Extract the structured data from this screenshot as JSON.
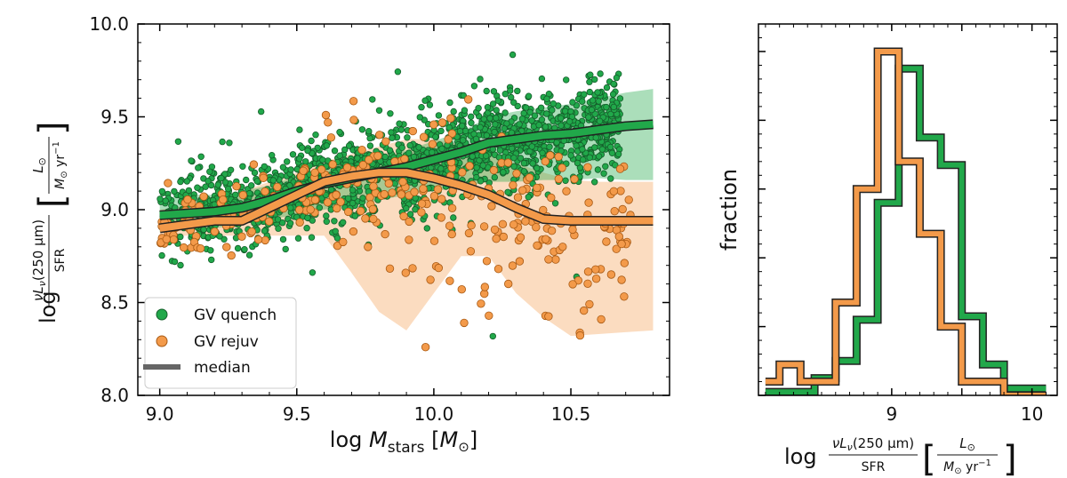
{
  "colors": {
    "quench": "#21a84a",
    "quench_edge": "#155e2b",
    "rejuv": "#f39a4a",
    "rejuv_edge": "#a85a14",
    "median_legend": "#666666"
  },
  "chart_data": [
    {
      "type": "scatter",
      "title": "",
      "xlabel_prefix": "log",
      "xlabel_math": "M",
      "xlabel_sub": "stars",
      "xlabel_unit": "M",
      "xlabel_unit_sub": "⊙",
      "ylabel_log": "log",
      "ylabel_num": "νL",
      "ylabel_num_sub": "ν",
      "ylabel_num_rest": "(250 μm)",
      "ylabel_den": "SFR",
      "ylabel_unit_num": "L",
      "ylabel_unit_num_sub": "⊙",
      "ylabel_unit_den": "M",
      "ylabel_unit_den_sub": "⊙",
      "ylabel_unit_den_rest": " yr",
      "ylabel_unit_den_sup": "−1",
      "xlim": [
        8.92,
        10.86
      ],
      "ylim": [
        8.0,
        10.0
      ],
      "xticks": [
        9.0,
        9.5,
        10.0,
        10.5
      ],
      "xtick_labels": [
        "9.0",
        "9.5",
        "10.0",
        "10.5"
      ],
      "yticks": [
        8.0,
        8.5,
        9.0,
        9.5,
        10.0
      ],
      "ytick_labels": [
        "8.0",
        "8.5",
        "9.0",
        "9.5",
        "10.0"
      ],
      "legend": {
        "position": "lower-left",
        "entries": [
          {
            "label": "GV quench",
            "kind": "marker",
            "series": "quench"
          },
          {
            "label": "GV rejuv",
            "kind": "marker",
            "series": "rejuv"
          },
          {
            "label": "median",
            "kind": "line",
            "series": "median"
          }
        ]
      },
      "series": [
        {
          "name": "GV quench",
          "key": "quench",
          "n_points": 1700,
          "median": {
            "x": [
              9.0,
              9.1,
              9.2,
              9.3,
              9.4,
              9.5,
              9.6,
              9.7,
              9.8,
              9.9,
              10.0,
              10.1,
              10.2,
              10.3,
              10.4,
              10.5,
              10.6,
              10.7,
              10.8
            ],
            "y": [
              8.97,
              8.98,
              8.99,
              9.01,
              9.05,
              9.1,
              9.14,
              9.17,
              9.2,
              9.23,
              9.27,
              9.31,
              9.36,
              9.38,
              9.4,
              9.41,
              9.43,
              9.45,
              9.46
            ]
          },
          "band_low": [
            8.88,
            8.9,
            8.9,
            8.92,
            8.95,
            8.97,
            9.0,
            9.02,
            9.05,
            9.08,
            9.1,
            9.12,
            9.15,
            9.15,
            9.16,
            9.16,
            9.17,
            9.16,
            9.16
          ],
          "band_high": [
            9.06,
            9.08,
            9.08,
            9.1,
            9.13,
            9.18,
            9.23,
            9.26,
            9.28,
            9.32,
            9.37,
            9.42,
            9.5,
            9.53,
            9.55,
            9.57,
            9.6,
            9.63,
            9.65
          ]
        },
        {
          "name": "GV rejuv",
          "key": "rejuv",
          "n_points": 360,
          "median": {
            "x": [
              9.0,
              9.1,
              9.2,
              9.3,
              9.4,
              9.5,
              9.6,
              9.7,
              9.8,
              9.9,
              10.0,
              10.1,
              10.2,
              10.3,
              10.4,
              10.5,
              10.6,
              10.7,
              10.8
            ],
            "y": [
              8.9,
              8.92,
              8.94,
              8.94,
              9.01,
              9.08,
              9.15,
              9.18,
              9.2,
              9.2,
              9.17,
              9.13,
              9.08,
              9.01,
              8.95,
              8.94,
              8.94,
              8.94,
              8.94
            ]
          },
          "band_low": [
            8.86,
            8.86,
            8.86,
            8.86,
            8.86,
            8.86,
            8.86,
            8.66,
            8.45,
            8.35,
            8.55,
            8.75,
            8.75,
            8.55,
            8.42,
            8.32,
            8.33,
            8.34,
            8.35
          ],
          "band_high": [
            9.0,
            9.02,
            9.05,
            9.1,
            9.15,
            9.2,
            9.26,
            9.3,
            9.34,
            9.38,
            9.38,
            9.35,
            9.3,
            9.25,
            9.2,
            9.16,
            9.15,
            9.15,
            9.15
          ]
        }
      ]
    },
    {
      "type": "histogram-step",
      "title": "",
      "ylabel": "fraction",
      "xlabel_log": "log",
      "xlim": [
        8.05,
        10.18
      ],
      "ylim": [
        0,
        1.08
      ],
      "xticks": [
        9.0,
        9.5,
        10.0
      ],
      "xtick_labels": [
        "9",
        "",
        "10"
      ],
      "series": [
        {
          "name": "GV quench",
          "key": "quench",
          "edges": [
            8.1,
            8.3,
            8.45,
            8.6,
            8.75,
            8.9,
            9.05,
            9.2,
            9.35,
            9.5,
            9.65,
            9.8,
            10.1
          ],
          "values": [
            0.01,
            0.01,
            0.05,
            0.1,
            0.22,
            0.56,
            0.95,
            0.75,
            0.67,
            0.23,
            0.09,
            0.02
          ]
        },
        {
          "name": "GV rejuv",
          "key": "rejuv",
          "edges": [
            8.1,
            8.2,
            8.35,
            8.5,
            8.6,
            8.75,
            8.9,
            9.05,
            9.2,
            9.35,
            9.5,
            9.65,
            9.8,
            10.1
          ],
          "values": [
            0.04,
            0.09,
            0.04,
            0.04,
            0.27,
            0.6,
            1.0,
            0.68,
            0.47,
            0.2,
            0.04,
            0.04,
            0.0
          ]
        }
      ]
    }
  ]
}
